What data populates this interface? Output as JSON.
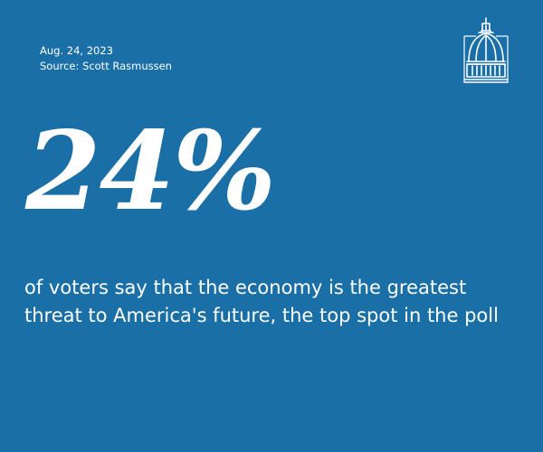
{
  "colors": {
    "background": "#1a6fa6",
    "text": "#ffffff"
  },
  "meta": {
    "date": "Aug. 24, 2023",
    "source": "Source: Scott Rasmussen"
  },
  "logo": {
    "icon": "capitol-dome-icon"
  },
  "stat": {
    "value": "24%",
    "caption": "of voters say that the economy is the greatest threat to America's future, the top spot in the poll"
  }
}
